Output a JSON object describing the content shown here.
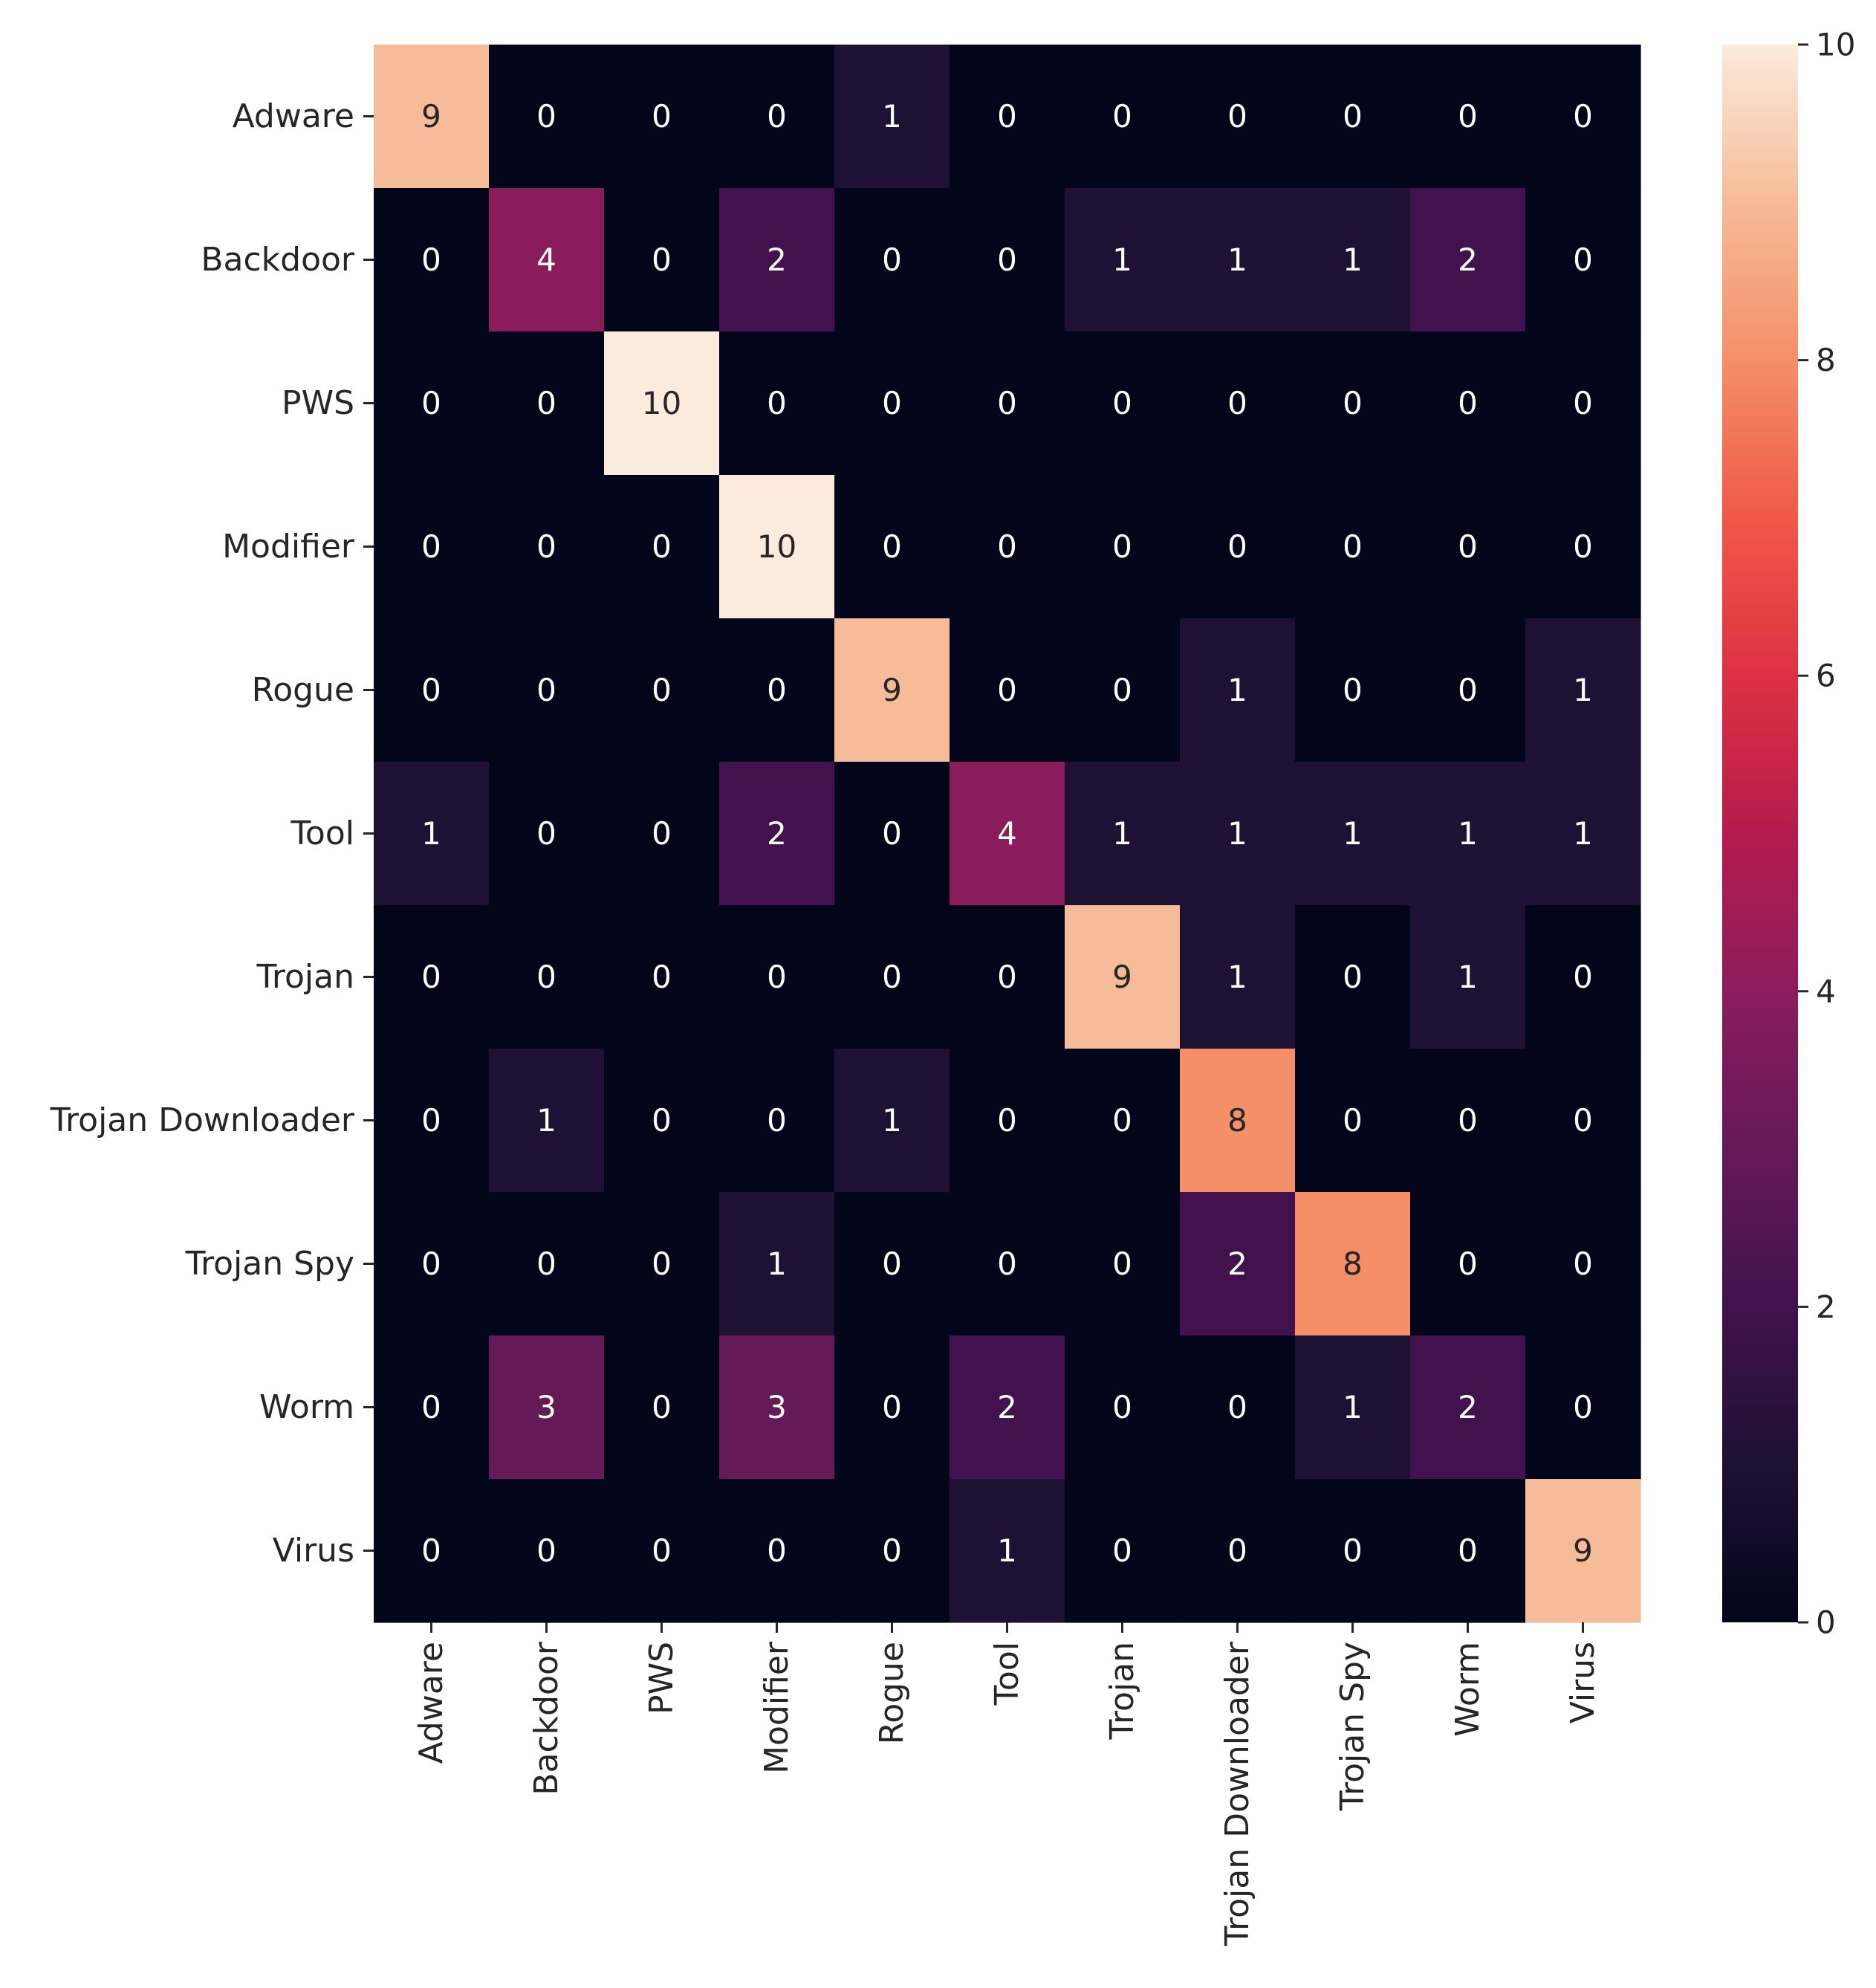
{
  "chart_data": {
    "type": "heatmap",
    "title": "",
    "xlabel": "",
    "ylabel": "",
    "categories_x": [
      "Adware",
      "Backdoor",
      "PWS",
      "Modifier",
      "Rogue",
      "Tool",
      "Trojan",
      "Trojan Downloader",
      "Trojan Spy",
      "Worm",
      "Virus"
    ],
    "categories_y": [
      "Adware",
      "Backdoor",
      "PWS",
      "Modifier",
      "Rogue",
      "Tool",
      "Trojan",
      "Trojan Downloader",
      "Trojan Spy",
      "Worm",
      "Virus"
    ],
    "values": [
      [
        9,
        0,
        0,
        0,
        1,
        0,
        0,
        0,
        0,
        0,
        0
      ],
      [
        0,
        4,
        0,
        2,
        0,
        0,
        1,
        1,
        1,
        2,
        0
      ],
      [
        0,
        0,
        10,
        0,
        0,
        0,
        0,
        0,
        0,
        0,
        0
      ],
      [
        0,
        0,
        0,
        10,
        0,
        0,
        0,
        0,
        0,
        0,
        0
      ],
      [
        0,
        0,
        0,
        0,
        9,
        0,
        0,
        1,
        0,
        0,
        1
      ],
      [
        1,
        0,
        0,
        2,
        0,
        4,
        1,
        1,
        1,
        1,
        1
      ],
      [
        0,
        0,
        0,
        0,
        0,
        0,
        9,
        1,
        0,
        1,
        0
      ],
      [
        0,
        1,
        0,
        0,
        1,
        0,
        0,
        8,
        0,
        0,
        0
      ],
      [
        0,
        0,
        0,
        1,
        0,
        0,
        0,
        2,
        8,
        0,
        0
      ],
      [
        0,
        3,
        0,
        3,
        0,
        2,
        0,
        0,
        1,
        2,
        0
      ],
      [
        0,
        0,
        0,
        0,
        0,
        1,
        0,
        0,
        0,
        0,
        9
      ]
    ],
    "colorbar": {
      "min": 0,
      "max": 10,
      "ticks": [
        0,
        2,
        4,
        6,
        8,
        10
      ],
      "colormap": "rocket"
    },
    "annotations": true,
    "grid": false
  }
}
